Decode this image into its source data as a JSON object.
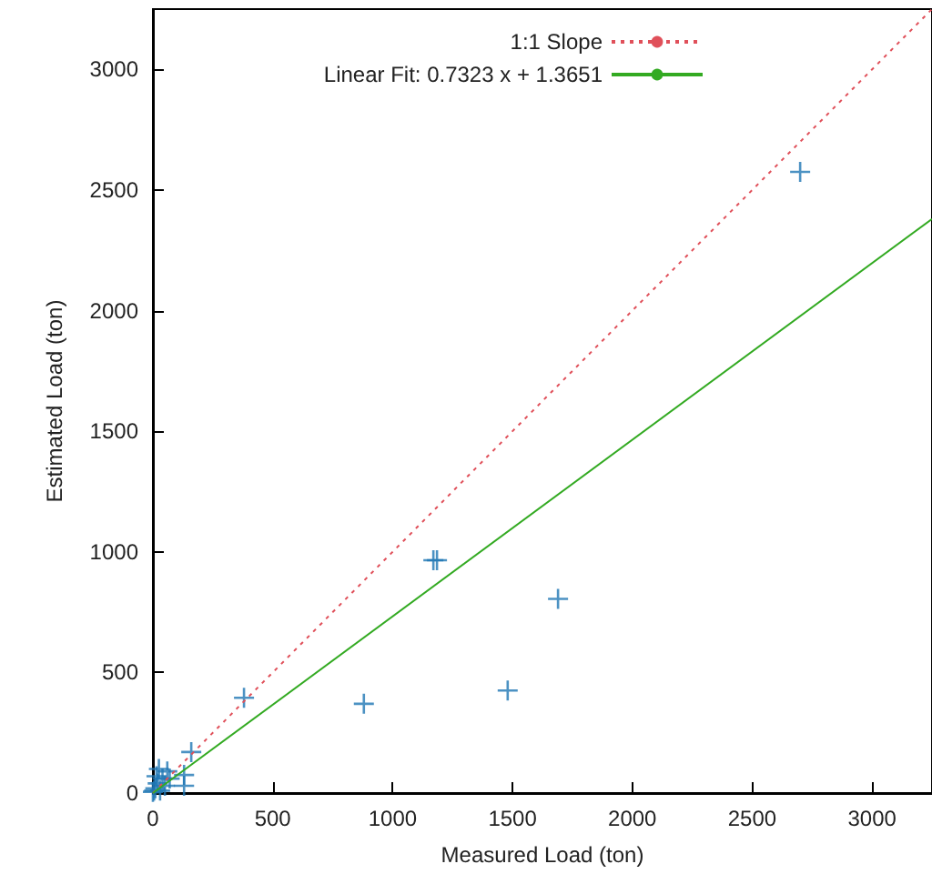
{
  "chart_data": {
    "type": "scatter",
    "xlabel": "Measured Load (ton)",
    "ylabel": "Estimated Load (ton)",
    "xlim": [
      0,
      3250
    ],
    "ylim": [
      0,
      3250
    ],
    "xticks": [
      0,
      500,
      1000,
      1500,
      2000,
      2500,
      3000
    ],
    "yticks": [
      0,
      500,
      1000,
      1500,
      2000,
      2500,
      3000
    ],
    "grid": false,
    "legend": "top right",
    "marker": "cross",
    "series": [
      {
        "color": "#1f77b4",
        "x": [
          2700,
          1170,
          1185,
          380,
          880,
          1480,
          1690,
          160,
          130,
          130,
          60,
          40,
          20,
          10,
          5,
          30,
          50,
          0,
          70,
          15,
          25
        ],
        "values": [
          2575,
          965,
          965,
          395,
          370,
          425,
          805,
          170,
          75,
          30,
          90,
          60,
          40,
          20,
          10,
          10,
          30,
          5,
          60,
          70,
          100
        ]
      },
      {
        "type": "line",
        "name": "1:1 Slope",
        "color": "#e0505a",
        "line_style": "dotted",
        "marker": "none",
        "x": [
          0,
          3250
        ],
        "values": [
          0,
          3250
        ]
      },
      {
        "type": "line",
        "name": "Linear Fit: 0.7323 x + 1.3651",
        "color": "#33aa22",
        "line_style": "solid",
        "marker": "none",
        "x": [
          0,
          3250
        ],
        "values": [
          0,
          2380
        ]
      }
    ]
  }
}
